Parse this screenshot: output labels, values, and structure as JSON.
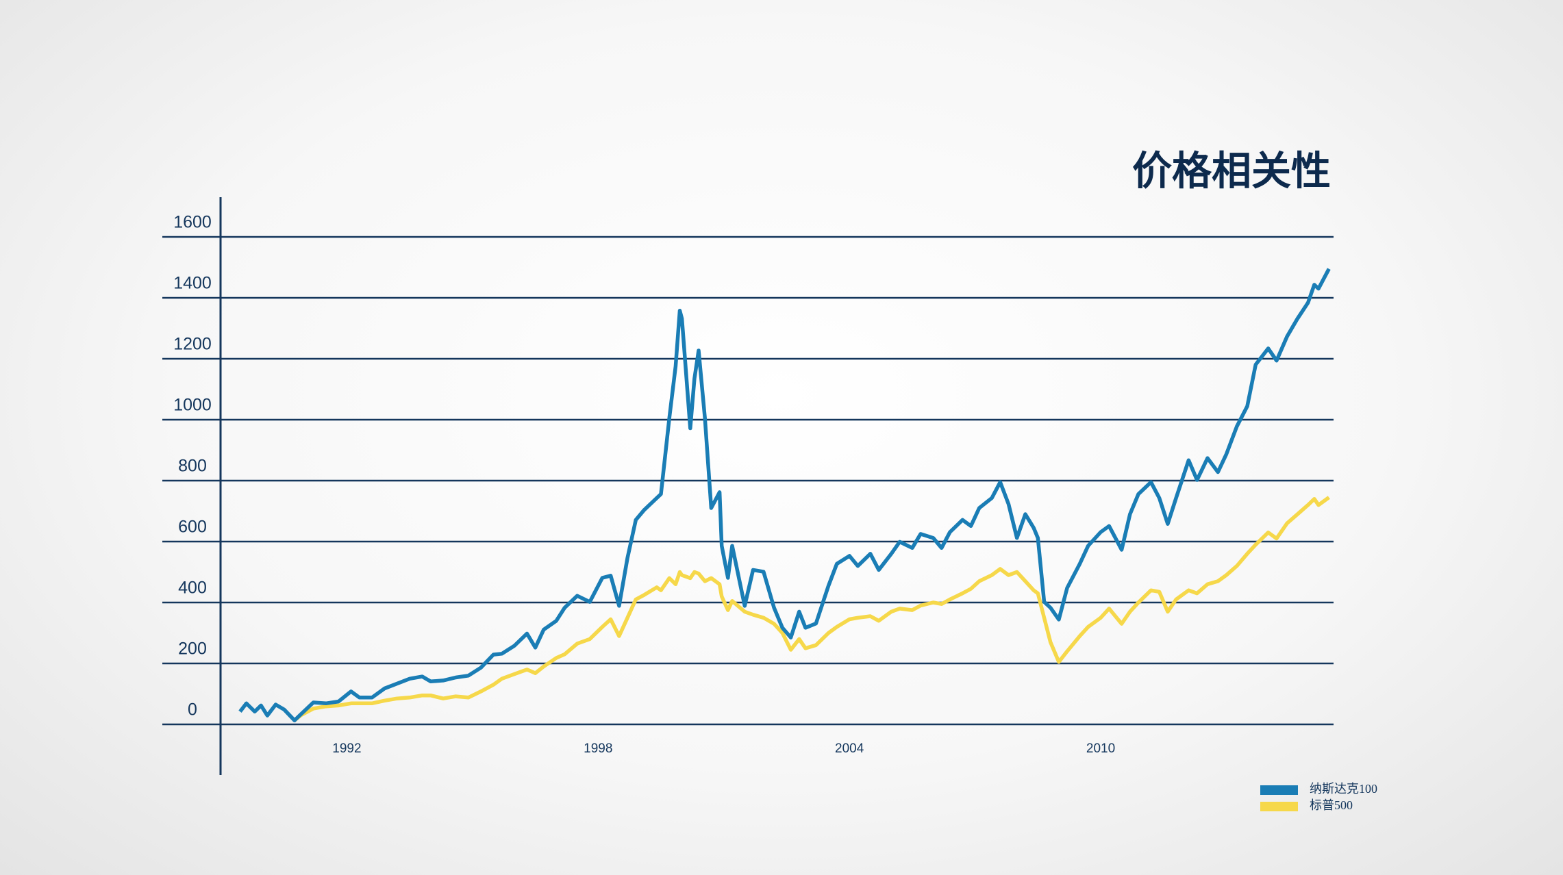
{
  "chart_data": {
    "type": "line",
    "title": "价格相关性",
    "x": [
      1989.45,
      1989.6,
      1989.8,
      1989.95,
      1990.1,
      1990.3,
      1990.5,
      1990.75,
      1990.9,
      1991.2,
      1991.5,
      1991.8,
      1992.1,
      1992.3,
      1992.6,
      1992.9,
      1993.2,
      1993.5,
      1993.8,
      1994.0,
      1994.3,
      1994.6,
      1994.9,
      1995.2,
      1995.5,
      1995.7,
      1996.0,
      1996.3,
      1996.5,
      1996.7,
      1997.0,
      1997.2,
      1997.5,
      1997.8,
      1998.1,
      1998.3,
      1998.5,
      1998.7,
      1998.9,
      1999.1,
      1999.4,
      1999.5,
      1999.7,
      1999.85,
      1999.95,
      2000.0,
      2000.2,
      2000.3,
      2000.4,
      2000.55,
      2000.7,
      2000.9,
      2000.95,
      2001.1,
      2001.2,
      2001.5,
      2001.7,
      2001.95,
      2002.2,
      2002.4,
      2002.6,
      2002.8,
      2002.95,
      2003.2,
      2003.5,
      2003.7,
      2004.0,
      2004.2,
      2004.5,
      2004.7,
      2005.0,
      2005.2,
      2005.5,
      2005.7,
      2006.0,
      2006.2,
      2006.4,
      2006.7,
      2006.9,
      2007.1,
      2007.4,
      2007.6,
      2007.8,
      2008.0,
      2008.2,
      2008.4,
      2008.5,
      2008.65,
      2008.8,
      2009.0,
      2009.2,
      2009.5,
      2009.7,
      2010.0,
      2010.2,
      2010.5,
      2010.7,
      2010.9,
      2011.2,
      2011.4,
      2011.6,
      2011.8,
      2012.1,
      2012.3,
      2012.55,
      2012.8,
      2013.0,
      2013.25,
      2013.5,
      2013.7,
      2014.0,
      2014.2,
      2014.45,
      2014.7,
      2014.95,
      2015.1,
      2015.2,
      2015.45
    ],
    "series": [
      {
        "name": "纳斯达克100",
        "color": "#1a7db5",
        "values": [
          42,
          69,
          42,
          62,
          29,
          65,
          49,
          13,
          33,
          72,
          69,
          75,
          108,
          88,
          88,
          118,
          134,
          150,
          157,
          141,
          144,
          154,
          160,
          186,
          229,
          232,
          258,
          298,
          252,
          311,
          340,
          383,
          422,
          402,
          481,
          488,
          389,
          546,
          671,
          704,
          743,
          756,
          1005,
          1175,
          1358,
          1332,
          972,
          1135,
          1227,
          1005,
          710,
          762,
          586,
          481,
          586,
          389,
          507,
          501,
          383,
          317,
          285,
          370,
          317,
          331,
          455,
          527,
          553,
          520,
          560,
          507,
          560,
          599,
          579,
          625,
          612,
          579,
          631,
          671,
          651,
          710,
          743,
          795,
          723,
          612,
          690,
          645,
          612,
          402,
          383,
          344,
          448,
          527,
          586,
          631,
          651,
          573,
          690,
          756,
          795,
          743,
          658,
          743,
          867,
          802,
          874,
          828,
          887,
          978,
          1044,
          1181,
          1234,
          1194,
          1273,
          1332,
          1384,
          1443,
          1430,
          1495
        ]
      },
      {
        "name": "标普500",
        "color": "#f6d84a",
        "values": [
          null,
          null,
          null,
          null,
          null,
          null,
          null,
          13,
          30,
          52,
          59,
          62,
          69,
          69,
          69,
          78,
          85,
          88,
          95,
          95,
          85,
          92,
          88,
          108,
          130,
          150,
          165,
          180,
          168,
          190,
          218,
          230,
          265,
          280,
          320,
          345,
          290,
          350,
          410,
          425,
          450,
          440,
          480,
          460,
          500,
          490,
          480,
          500,
          495,
          470,
          480,
          460,
          420,
          375,
          405,
          370,
          360,
          350,
          330,
          300,
          245,
          280,
          250,
          260,
          300,
          320,
          345,
          350,
          355,
          340,
          370,
          380,
          375,
          390,
          400,
          395,
          410,
          430,
          445,
          470,
          490,
          510,
          490,
          500,
          470,
          440,
          430,
          350,
          270,
          205,
          240,
          290,
          320,
          350,
          380,
          330,
          370,
          400,
          440,
          435,
          370,
          410,
          440,
          430,
          460,
          470,
          490,
          520,
          560,
          590,
          630,
          610,
          660,
          690,
          720,
          740,
          720,
          745
        ]
      }
    ],
    "xlim": [
      1989,
      2015.56
    ],
    "xticks": [
      1992,
      1998,
      2004,
      2010
    ],
    "ylim": [
      0,
      1600
    ],
    "yticks": [
      0,
      200,
      400,
      600,
      800,
      1000,
      1200,
      1400,
      1600
    ],
    "grid": true
  }
}
